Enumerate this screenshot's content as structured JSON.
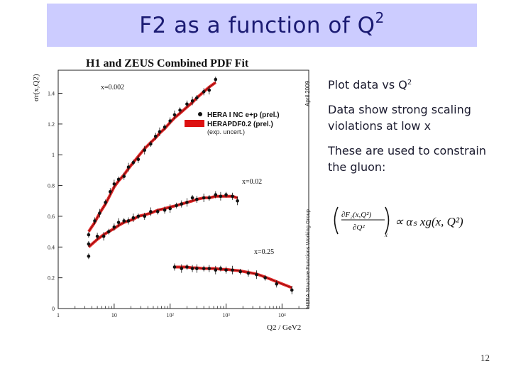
{
  "slide": {
    "title_main": "F2 as a function of Q",
    "title_sup": "2",
    "page_number": "12"
  },
  "plot": {
    "title": "H1 and ZEUS Combined PDF Fit",
    "ylabel": "σr(x,Q2)",
    "xlabel": "Q2 / GeV2",
    "side_label_top": "April 2009",
    "side_label_bottom": "HERA Structure Functions Working Group",
    "legend": {
      "data_label": "HERA I NC e+p (prel.)",
      "fit_label": "HERAPDF0.2 (prel.)",
      "fit_sublabel": "(exp. uncert.)"
    },
    "bin_labels": [
      "x=0.002",
      "x=0.02",
      "x=0.25"
    ],
    "y_ticks": [
      "0",
      "0.2",
      "0.4",
      "0.6",
      "0.8",
      "1",
      "1.2",
      "1.4"
    ],
    "x_ticks": [
      "1",
      "10",
      "10²",
      "10³",
      "10⁴"
    ]
  },
  "bullets": {
    "b1_text": "Plot data vs Q",
    "b1_sup": "2",
    "b2": "Data show strong scaling violations at low x",
    "b3": "These are used to constrain the gluon:"
  },
  "formula": {
    "numerator": "∂F₂(x,Q²)",
    "denominator": "∂Q²",
    "subscript": "x",
    "rhs": "∝ αₛ xg(x, Q²)"
  },
  "colors": {
    "fit": "#dd1111",
    "title_band": "#ccccff",
    "title_text": "#1b1b73"
  },
  "chart_data": {
    "type": "scatter",
    "title": "H1 and ZEUS Combined PDF Fit",
    "xlabel": "Q2 / GeV2",
    "ylabel": "σr(x,Q2)",
    "xscale": "log",
    "xlim": [
      1,
      30000
    ],
    "ylim": [
      0,
      1.55
    ],
    "grid": false,
    "legend_position": "top-right",
    "series": [
      {
        "name": "x=0.002",
        "x": [
          3.5,
          4.5,
          5.5,
          7,
          8.5,
          10,
          12,
          15,
          18,
          22,
          27,
          35,
          45,
          55,
          65,
          80,
          100,
          120,
          150,
          200,
          250,
          300,
          400,
          500,
          650
        ],
        "y": [
          0.48,
          0.57,
          0.62,
          0.69,
          0.76,
          0.81,
          0.84,
          0.86,
          0.92,
          0.95,
          0.97,
          1.03,
          1.07,
          1.12,
          1.15,
          1.18,
          1.22,
          1.26,
          1.29,
          1.33,
          1.35,
          1.37,
          1.41,
          1.42,
          1.49
        ],
        "fit_y": [
          0.5,
          0.56,
          0.62,
          0.68,
          0.74,
          0.79,
          0.83,
          0.87,
          0.91,
          0.95,
          0.99,
          1.04,
          1.08,
          1.11,
          1.14,
          1.17,
          1.21,
          1.24,
          1.27,
          1.31,
          1.34,
          1.37,
          1.41,
          1.44,
          1.47
        ]
      },
      {
        "name": "x=0.02",
        "x": [
          3.5,
          5,
          6.5,
          8,
          10,
          12,
          15,
          18,
          22,
          27,
          35,
          45,
          60,
          80,
          100,
          130,
          160,
          200,
          250,
          300,
          400,
          500,
          650,
          800,
          1000,
          1300,
          1600
        ],
        "y": [
          0.42,
          0.47,
          0.47,
          0.5,
          0.53,
          0.56,
          0.57,
          0.57,
          0.59,
          0.6,
          0.6,
          0.63,
          0.63,
          0.64,
          0.65,
          0.67,
          0.68,
          0.69,
          0.72,
          0.71,
          0.72,
          0.72,
          0.74,
          0.73,
          0.74,
          0.73,
          0.7
        ],
        "fit_y": [
          0.4,
          0.45,
          0.48,
          0.5,
          0.52,
          0.54,
          0.56,
          0.57,
          0.58,
          0.6,
          0.61,
          0.62,
          0.64,
          0.65,
          0.66,
          0.67,
          0.68,
          0.69,
          0.7,
          0.71,
          0.72,
          0.72,
          0.73,
          0.73,
          0.73,
          0.73,
          0.72
        ]
      },
      {
        "name": "x=0.25",
        "x": [
          3.5,
          120,
          160,
          200,
          250,
          300,
          400,
          500,
          650,
          800,
          1000,
          1300,
          1800,
          2500,
          3500,
          5000,
          8000,
          15000
        ],
        "y": [
          0.34,
          0.27,
          0.26,
          0.27,
          0.26,
          0.26,
          0.26,
          0.26,
          0.25,
          0.26,
          0.25,
          0.25,
          0.24,
          0.23,
          0.22,
          0.2,
          0.16,
          0.12
        ],
        "fit_y": [
          null,
          0.27,
          0.27,
          0.27,
          0.265,
          0.265,
          0.26,
          0.26,
          0.26,
          0.255,
          0.255,
          0.25,
          0.245,
          0.235,
          0.225,
          0.205,
          0.175,
          0.135
        ]
      }
    ]
  }
}
